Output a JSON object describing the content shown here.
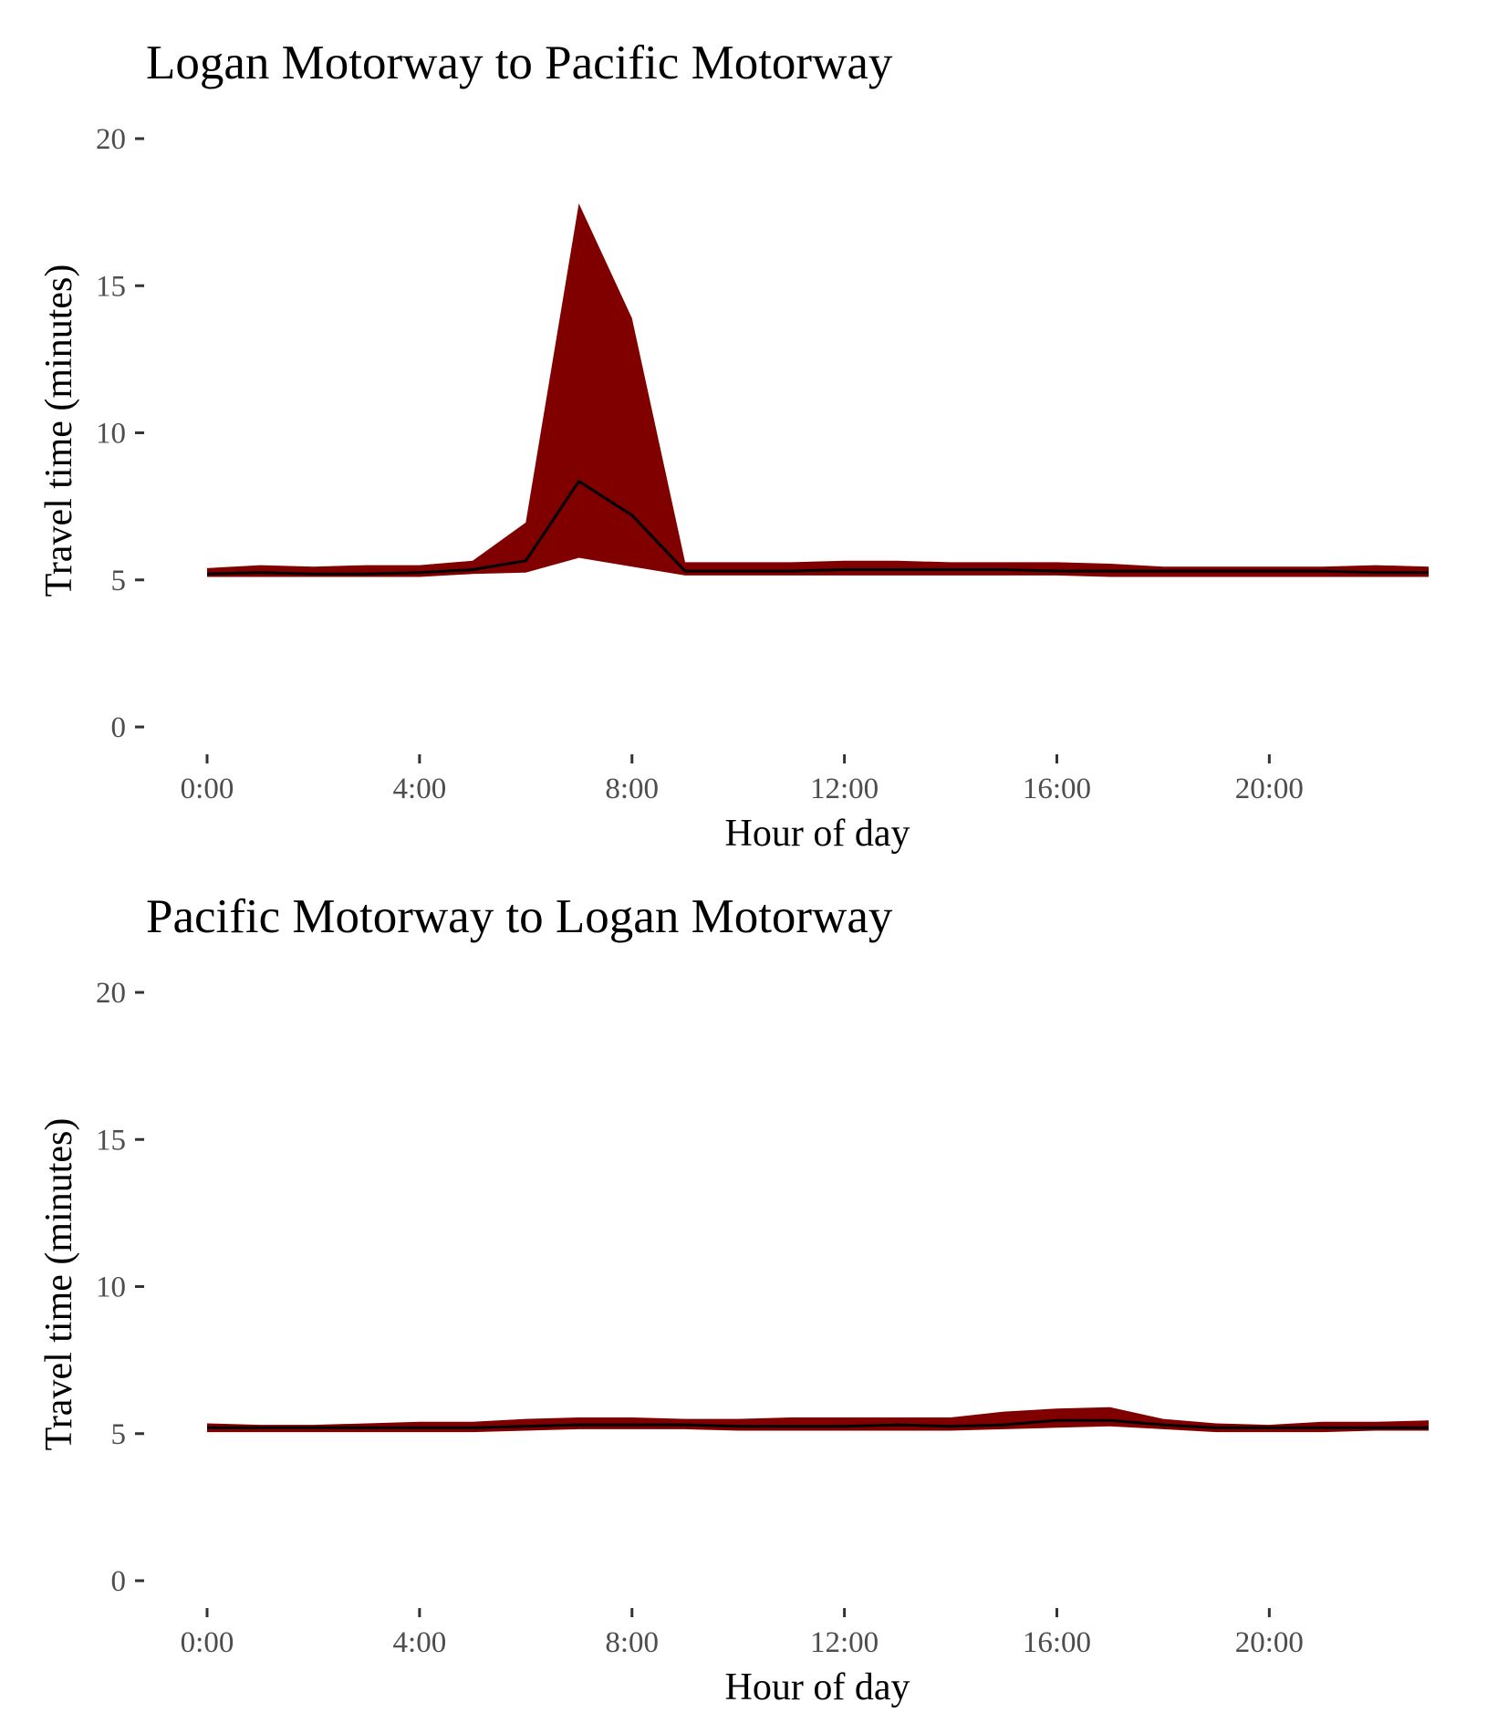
{
  "chart_data": [
    {
      "type": "area",
      "title": "Logan Motorway to Pacific Motorway",
      "xlabel": "Hour of day",
      "ylabel": "Travel time (minutes)",
      "xlim": [
        0,
        23
      ],
      "ylim": [
        0,
        20
      ],
      "x_ticks": [
        0,
        4,
        8,
        12,
        16,
        20
      ],
      "x_tick_labels": [
        "0:00",
        "4:00",
        "8:00",
        "12:00",
        "16:00",
        "20:00"
      ],
      "y_ticks": [
        0,
        5,
        10,
        15,
        20
      ],
      "y_tick_labels": [
        "0",
        "5",
        "10",
        "15",
        "20"
      ],
      "grid": false,
      "band_color": "#800000",
      "line_color": "#000000",
      "x": [
        0,
        1,
        2,
        3,
        4,
        5,
        6,
        7,
        8,
        9,
        10,
        11,
        12,
        13,
        14,
        15,
        16,
        17,
        18,
        19,
        20,
        21,
        22,
        23
      ],
      "series": [
        {
          "role": "upper",
          "values": [
            5.4,
            5.5,
            5.45,
            5.5,
            5.5,
            5.65,
            6.95,
            17.8,
            13.9,
            5.6,
            5.6,
            5.6,
            5.65,
            5.65,
            5.6,
            5.6,
            5.6,
            5.55,
            5.45,
            5.45,
            5.45,
            5.45,
            5.5,
            5.45
          ]
        },
        {
          "role": "median",
          "values": [
            5.2,
            5.25,
            5.2,
            5.2,
            5.25,
            5.35,
            5.65,
            8.35,
            7.2,
            5.3,
            5.3,
            5.3,
            5.35,
            5.35,
            5.35,
            5.35,
            5.3,
            5.3,
            5.3,
            5.3,
            5.3,
            5.3,
            5.25,
            5.25
          ]
        },
        {
          "role": "lower",
          "values": [
            5.1,
            5.1,
            5.1,
            5.1,
            5.1,
            5.2,
            5.25,
            5.75,
            5.45,
            5.15,
            5.15,
            5.15,
            5.15,
            5.15,
            5.15,
            5.15,
            5.15,
            5.1,
            5.1,
            5.1,
            5.1,
            5.1,
            5.1,
            5.1
          ]
        }
      ]
    },
    {
      "type": "area",
      "title": "Pacific Motorway to Logan Motorway",
      "xlabel": "Hour of day",
      "ylabel": "Travel time (minutes)",
      "xlim": [
        0,
        23
      ],
      "ylim": [
        0,
        20
      ],
      "x_ticks": [
        0,
        4,
        8,
        12,
        16,
        20
      ],
      "x_tick_labels": [
        "0:00",
        "4:00",
        "8:00",
        "12:00",
        "16:00",
        "20:00"
      ],
      "y_ticks": [
        0,
        5,
        10,
        15,
        20
      ],
      "y_tick_labels": [
        "0",
        "5",
        "10",
        "15",
        "20"
      ],
      "grid": false,
      "band_color": "#800000",
      "line_color": "#000000",
      "x": [
        0,
        1,
        2,
        3,
        4,
        5,
        6,
        7,
        8,
        9,
        10,
        11,
        12,
        13,
        14,
        15,
        16,
        17,
        18,
        19,
        20,
        21,
        22,
        23
      ],
      "series": [
        {
          "role": "upper",
          "values": [
            5.35,
            5.3,
            5.3,
            5.35,
            5.4,
            5.4,
            5.5,
            5.55,
            5.55,
            5.5,
            5.5,
            5.55,
            5.55,
            5.55,
            5.55,
            5.75,
            5.85,
            5.9,
            5.5,
            5.35,
            5.3,
            5.4,
            5.4,
            5.45
          ]
        },
        {
          "role": "median",
          "values": [
            5.2,
            5.2,
            5.2,
            5.2,
            5.2,
            5.2,
            5.25,
            5.3,
            5.3,
            5.3,
            5.25,
            5.25,
            5.25,
            5.3,
            5.25,
            5.3,
            5.45,
            5.45,
            5.3,
            5.2,
            5.2,
            5.2,
            5.2,
            5.2
          ]
        },
        {
          "role": "lower",
          "values": [
            5.05,
            5.05,
            5.05,
            5.05,
            5.05,
            5.05,
            5.1,
            5.15,
            5.15,
            5.15,
            5.1,
            5.1,
            5.1,
            5.1,
            5.1,
            5.15,
            5.2,
            5.25,
            5.15,
            5.05,
            5.05,
            5.05,
            5.1,
            5.1
          ]
        }
      ]
    }
  ]
}
